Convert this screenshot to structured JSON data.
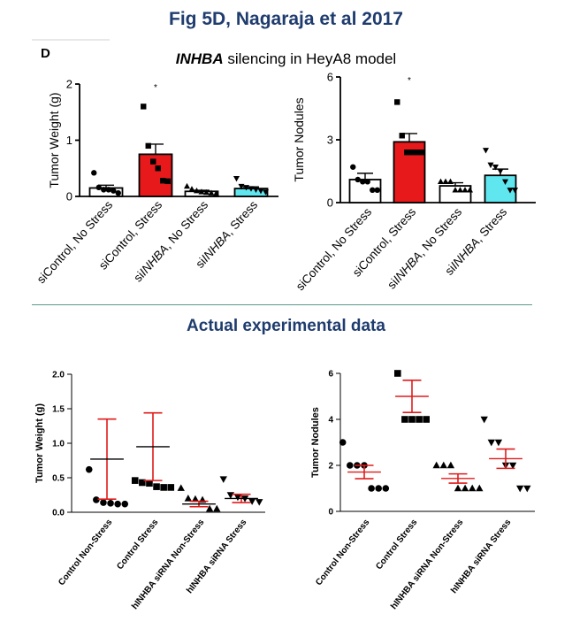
{
  "header": {
    "figure_title": "Fig 5D, Nagaraja et al 2017",
    "panel_letter": "D",
    "panel_title_gene": "INHBA",
    "panel_title_rest": " silencing in HeyA8 model",
    "section_title": "Actual experimental data"
  },
  "chart_data": [
    {
      "id": "top-left",
      "type": "bar",
      "ylabel": "Tumor Weight (g)",
      "ylim": [
        0,
        2
      ],
      "yticks": [
        0,
        1,
        2
      ],
      "categories": [
        "siControl, No Stress",
        "siControl, Stress",
        "siINHBA, No Stress",
        "siINHBA, Stress"
      ],
      "category_parts": [
        [
          {
            "t": "siControl, No Stress",
            "i": false
          }
        ],
        [
          {
            "t": "siControl, Stress",
            "i": false
          }
        ],
        [
          {
            "t": "si",
            "i": false
          },
          {
            "t": "INHBA",
            "i": true
          },
          {
            "t": ", No Stress",
            "i": false
          }
        ],
        [
          {
            "t": "si",
            "i": false
          },
          {
            "t": "INHBA",
            "i": true
          },
          {
            "t": ", Stress",
            "i": false
          }
        ]
      ],
      "values": [
        0.15,
        0.75,
        0.09,
        0.14
      ],
      "errors": [
        0.05,
        0.18,
        0.02,
        0.03
      ],
      "colors": [
        "#ffffff",
        "#e8191b",
        "#ffffff",
        "#5fe6ef"
      ],
      "markers": [
        "circle",
        "square",
        "triangle",
        "triangle-down"
      ],
      "points": [
        [
          0.42,
          0.16,
          0.12,
          0.12,
          0.1,
          0.06
        ],
        [
          1.6,
          0.9,
          0.62,
          0.5,
          0.28,
          0.27
        ],
        [
          0.18,
          0.13,
          0.1,
          0.08,
          0.07,
          0.06,
          0.05
        ],
        [
          0.32,
          0.18,
          0.16,
          0.14,
          0.12,
          0.1,
          0.08
        ]
      ],
      "significance": [
        {
          "index": 1,
          "label": "*"
        }
      ]
    },
    {
      "id": "top-right",
      "type": "bar",
      "ylabel": "Tumor Nodules",
      "ylim": [
        0,
        6
      ],
      "yticks": [
        0,
        3,
        6
      ],
      "categories": [
        "siControl, No Stress",
        "siControl, Stress",
        "siINHBA, No Stress",
        "siINHBA, Stress"
      ],
      "category_parts": [
        [
          {
            "t": "siControl, No Stress",
            "i": false
          }
        ],
        [
          {
            "t": "siControl, Stress",
            "i": false
          }
        ],
        [
          {
            "t": "si",
            "i": false
          },
          {
            "t": "INHBA",
            "i": true
          },
          {
            "t": ", No Stress",
            "i": false
          }
        ],
        [
          {
            "t": "si",
            "i": false
          },
          {
            "t": "INHBA",
            "i": true
          },
          {
            "t": ", Stress",
            "i": false
          }
        ]
      ],
      "values": [
        1.1,
        2.9,
        0.8,
        1.3
      ],
      "errors": [
        0.3,
        0.4,
        0.15,
        0.3
      ],
      "colors": [
        "#ffffff",
        "#e8191b",
        "#ffffff",
        "#5fe6ef"
      ],
      "markers": [
        "circle",
        "square",
        "triangle",
        "triangle-down"
      ],
      "points": [
        [
          1.7,
          1.1,
          1.0,
          1.0,
          0.6,
          0.6
        ],
        [
          4.8,
          3.2,
          2.4,
          2.4,
          2.4,
          2.4
        ],
        [
          1.0,
          1.0,
          1.0,
          0.6,
          0.6,
          0.6,
          0.6
        ],
        [
          2.5,
          1.8,
          1.7,
          1.5,
          1.0,
          0.6,
          0.6
        ]
      ],
      "significance": [
        {
          "index": 1,
          "label": "*"
        }
      ]
    },
    {
      "id": "bottom-left",
      "type": "scatter",
      "ylabel": "Tumor Weight (g)",
      "ylim": [
        0,
        2.0
      ],
      "yticks": [
        0,
        0.5,
        1.0,
        1.5,
        2.0
      ],
      "ytick_labels": [
        "0.0",
        "0.5",
        "1.0",
        "1.5",
        "2.0"
      ],
      "categories": [
        "Control Non-Stress",
        "Control Stress",
        "hINHBA siRNA Non-Stress",
        "hINHBA siRNA Stress"
      ],
      "markers": [
        "circle",
        "square",
        "triangle",
        "triangle-down"
      ],
      "means": [
        0.77,
        0.95,
        0.12,
        0.2
      ],
      "errors": [
        0.58,
        0.49,
        0.04,
        0.06
      ],
      "points": [
        [
          0.62,
          0.18,
          0.14,
          0.13,
          0.12,
          0.12
        ],
        [
          0.46,
          0.43,
          0.42,
          0.37,
          0.36,
          0.36
        ],
        [
          0.35,
          0.2,
          0.19,
          0.18,
          0.05,
          0.05
        ],
        [
          0.48,
          0.25,
          0.22,
          0.2,
          0.16,
          0.15
        ]
      ]
    },
    {
      "id": "bottom-right",
      "type": "scatter",
      "ylabel": "Tumor Nodules",
      "ylim": [
        0,
        6
      ],
      "yticks": [
        0,
        2,
        4,
        6
      ],
      "ytick_labels": [
        "0",
        "2",
        "4",
        "6"
      ],
      "categories": [
        "Control  Non-Stress",
        "Control Stress",
        "hINHBA siRNA Non-Stress",
        "hINHBA siRNA Stress"
      ],
      "markers": [
        "circle",
        "square",
        "triangle",
        "triangle-down"
      ],
      "means": [
        1.71,
        5.0,
        1.43,
        2.29
      ],
      "errors": [
        0.29,
        0.7,
        0.2,
        0.42
      ],
      "points": [
        [
          3,
          2,
          2,
          2,
          1,
          1,
          1
        ],
        [
          6,
          4,
          4,
          4,
          4
        ],
        [
          2,
          2,
          2,
          1,
          1,
          1,
          1
        ],
        [
          4,
          3,
          3,
          2,
          2,
          1,
          1
        ]
      ]
    }
  ]
}
